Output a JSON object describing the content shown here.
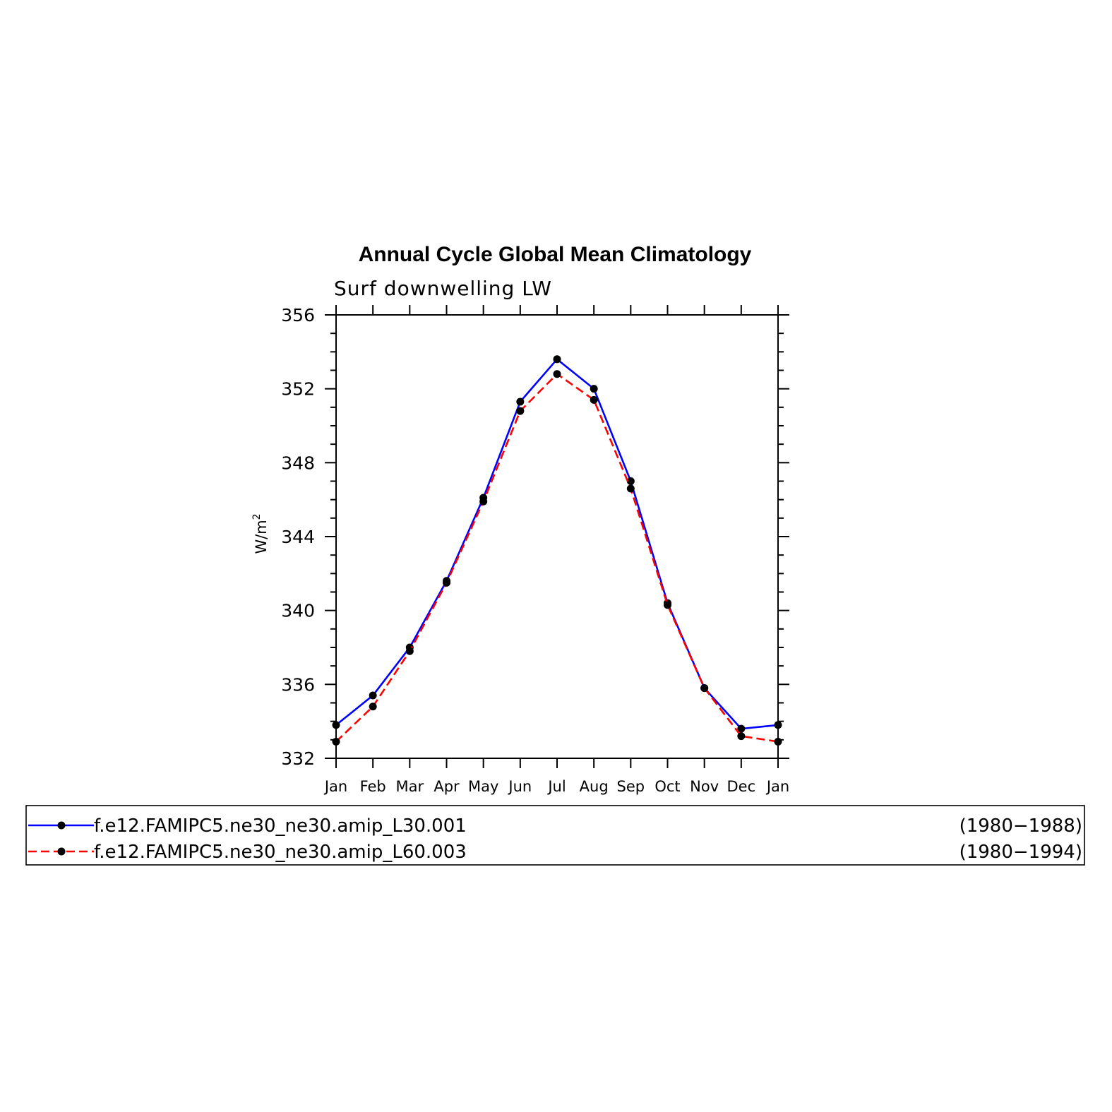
{
  "chart_data": {
    "type": "line",
    "title": "Annual Cycle Global Mean Climatology",
    "subtitle": "Surf downwelling LW",
    "ylabel": "W/m",
    "ylabel_sup": "2",
    "xlabel": "",
    "categories": [
      "Jan",
      "Feb",
      "Mar",
      "Apr",
      "May",
      "Jun",
      "Jul",
      "Aug",
      "Sep",
      "Oct",
      "Nov",
      "Dec",
      "Jan"
    ],
    "ylim": [
      332,
      356
    ],
    "yticks": [
      "332",
      "336",
      "340",
      "344",
      "348",
      "352",
      "356"
    ],
    "grid": false,
    "legend_position": "bottom",
    "series": [
      {
        "name": "f.e12.FAMIPC5.ne30_ne30.amip_L30.001",
        "period": "(1980−1988)",
        "color": "#0000ff",
        "dash": "solid",
        "values": [
          333.8,
          335.4,
          338.0,
          341.6,
          346.1,
          351.3,
          353.6,
          352.0,
          347.0,
          340.4,
          335.8,
          333.6,
          333.8
        ]
      },
      {
        "name": "f.e12.FAMIPC5.ne30_ne30.amip_L60.003",
        "period": "(1980−1994)",
        "color": "#ff0000",
        "dash": "dashed",
        "values": [
          332.9,
          334.8,
          337.8,
          341.5,
          345.9,
          350.8,
          352.8,
          351.4,
          346.6,
          340.3,
          335.8,
          333.2,
          332.9
        ]
      }
    ]
  }
}
